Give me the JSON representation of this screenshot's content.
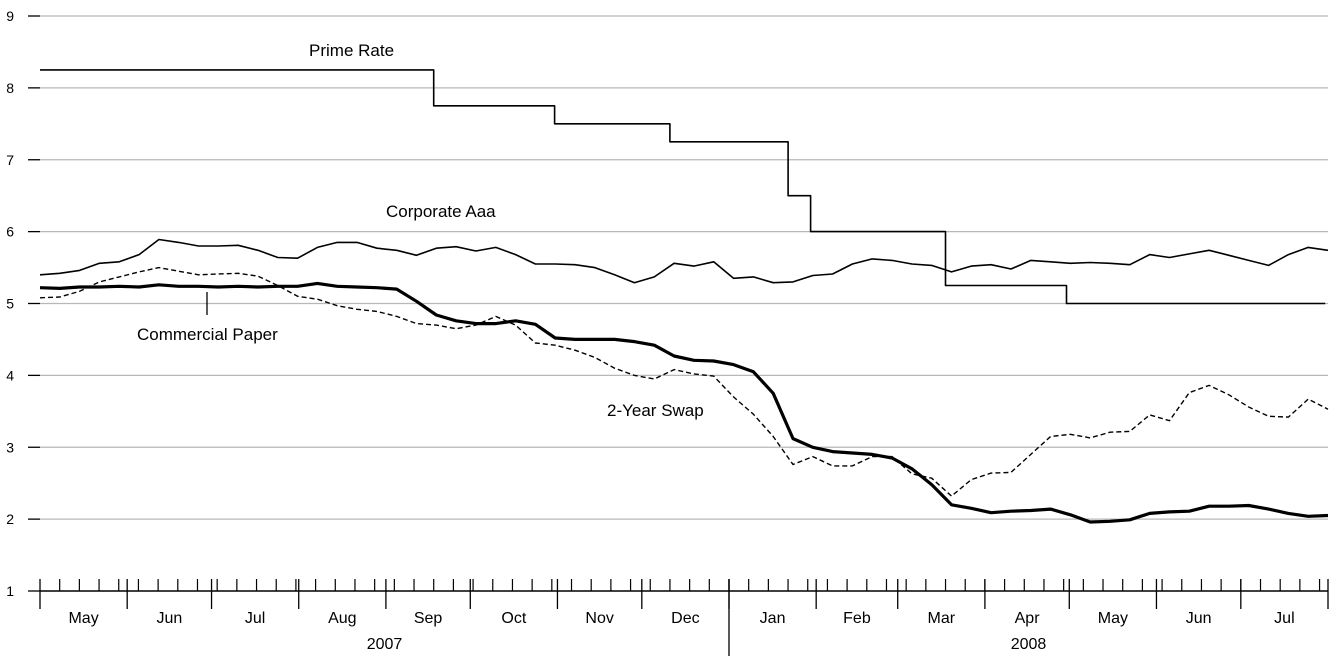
{
  "chart_data": {
    "type": "line",
    "title": "",
    "xlabel": "",
    "ylabel": "",
    "ylim": [
      1,
      9
    ],
    "yticks": [
      "1",
      "2",
      "3",
      "4",
      "5",
      "6",
      "7",
      "8",
      "9"
    ],
    "grid": "horizontal",
    "legend": "none (series labeled directly on chart)",
    "x_unit": "weekly observations, May 2007 – Jul 2008",
    "months": [
      {
        "label": "May",
        "year": 2007
      },
      {
        "label": "Jun",
        "year": 2007
      },
      {
        "label": "Jul",
        "year": 2007
      },
      {
        "label": "Aug",
        "year": 2007
      },
      {
        "label": "Sep",
        "year": 2007
      },
      {
        "label": "Oct",
        "year": 2007
      },
      {
        "label": "Nov",
        "year": 2007
      },
      {
        "label": "Dec",
        "year": 2007
      },
      {
        "label": "Jan",
        "year": 2008
      },
      {
        "label": "Feb",
        "year": 2008
      },
      {
        "label": "Mar",
        "year": 2008
      },
      {
        "label": "Apr",
        "year": 2008
      },
      {
        "label": "May",
        "year": 2008
      },
      {
        "label": "Jun",
        "year": 2008
      },
      {
        "label": "Jul",
        "year": 2008
      }
    ],
    "years": [
      {
        "label": "2007"
      },
      {
        "label": "2008"
      }
    ],
    "series": [
      {
        "name": "Prime Rate",
        "style": "step",
        "color": "#000000",
        "steps": [
          {
            "from": "2007-05-01",
            "to": "2007-09-18",
            "value": 8.25
          },
          {
            "from": "2007-09-18",
            "to": "2007-10-31",
            "value": 7.75
          },
          {
            "from": "2007-10-31",
            "to": "2007-12-11",
            "value": 7.5
          },
          {
            "from": "2007-12-11",
            "to": "2008-01-22",
            "value": 7.25
          },
          {
            "from": "2008-01-22",
            "to": "2008-01-30",
            "value": 6.5
          },
          {
            "from": "2008-01-30",
            "to": "2008-03-18",
            "value": 6.0
          },
          {
            "from": "2008-03-18",
            "to": "2008-04-30",
            "value": 5.25
          },
          {
            "from": "2008-04-30",
            "to": "2008-07-31",
            "value": 5.0
          }
        ]
      },
      {
        "name": "Corporate Aaa",
        "style": "thin",
        "color": "#000000",
        "values": [
          5.4,
          5.42,
          5.46,
          5.56,
          5.58,
          5.68,
          5.89,
          5.85,
          5.8,
          5.8,
          5.81,
          5.74,
          5.64,
          5.63,
          5.78,
          5.85,
          5.85,
          5.77,
          5.74,
          5.67,
          5.77,
          5.79,
          5.73,
          5.78,
          5.68,
          5.55,
          5.55,
          5.54,
          5.5,
          5.4,
          5.29,
          5.37,
          5.56,
          5.52,
          5.58,
          5.35,
          5.37,
          5.29,
          5.3,
          5.39,
          5.41,
          5.55,
          5.62,
          5.6,
          5.55,
          5.53,
          5.44,
          5.52,
          5.54,
          5.48,
          5.6,
          5.58,
          5.56,
          5.57,
          5.56,
          5.54,
          5.68,
          5.64,
          5.69,
          5.74,
          5.67,
          5.6,
          5.53,
          5.68,
          5.78,
          5.74
        ]
      },
      {
        "name": "Commercial Paper",
        "style": "thick",
        "color": "#000000",
        "values": [
          5.22,
          5.21,
          5.23,
          5.23,
          5.24,
          5.23,
          5.26,
          5.24,
          5.24,
          5.23,
          5.24,
          5.23,
          5.24,
          5.24,
          5.28,
          5.24,
          5.23,
          5.22,
          5.2,
          5.03,
          4.84,
          4.76,
          4.72,
          4.72,
          4.76,
          4.71,
          4.52,
          4.5,
          4.5,
          4.5,
          4.47,
          4.42,
          4.27,
          4.21,
          4.2,
          4.15,
          4.05,
          3.75,
          3.12,
          3.0,
          2.94,
          2.92,
          2.9,
          2.85,
          2.7,
          2.48,
          2.2,
          2.15,
          2.09,
          2.11,
          2.12,
          2.14,
          2.06,
          1.96,
          1.97,
          1.99,
          2.08,
          2.1,
          2.11,
          2.18,
          2.18,
          2.19,
          2.14,
          2.08,
          2.04,
          2.05
        ]
      },
      {
        "name": "2-Year Swap",
        "style": "dashed",
        "color": "#000000",
        "values": [
          5.08,
          5.09,
          5.17,
          5.3,
          5.37,
          5.44,
          5.5,
          5.45,
          5.4,
          5.41,
          5.42,
          5.38,
          5.25,
          5.1,
          5.06,
          4.97,
          4.92,
          4.89,
          4.82,
          4.72,
          4.7,
          4.65,
          4.7,
          4.82,
          4.7,
          4.45,
          4.42,
          4.35,
          4.25,
          4.1,
          4.0,
          3.95,
          4.08,
          4.02,
          3.99,
          3.7,
          3.46,
          3.15,
          2.76,
          2.87,
          2.74,
          2.74,
          2.87,
          2.87,
          2.63,
          2.57,
          2.32,
          2.55,
          2.64,
          2.65,
          2.9,
          3.15,
          3.18,
          3.13,
          3.21,
          3.22,
          3.45,
          3.37,
          3.76,
          3.86,
          3.73,
          3.56,
          3.43,
          3.42,
          3.67,
          3.53
        ]
      }
    ],
    "annotations": [
      {
        "text": "Prime Rate",
        "series": "Prime Rate"
      },
      {
        "text": "Corporate Aaa",
        "series": "Corporate Aaa"
      },
      {
        "text": "Commercial Paper",
        "series": "Commercial Paper"
      },
      {
        "text": "2-Year Swap",
        "series": "2-Year Swap"
      }
    ]
  }
}
